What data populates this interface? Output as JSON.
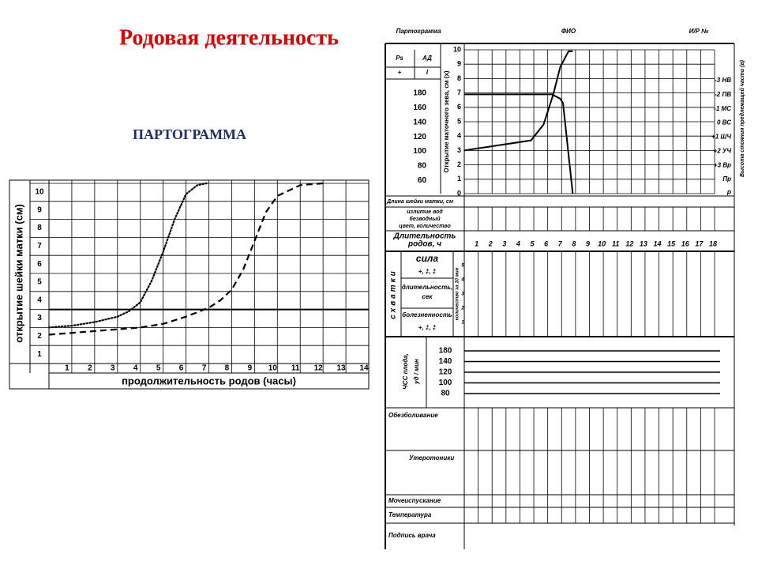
{
  "title": "Родовая деятельность",
  "subtitle": "ПАРТОГРАММА",
  "chart_data": [
    {
      "type": "line",
      "ylabel": "открытие шейки матки (см)",
      "xlabel": "продолжительность родов (часы)",
      "xlim": [
        0,
        14
      ],
      "xticks": [
        1,
        2,
        3,
        4,
        5,
        6,
        7,
        8,
        9,
        10,
        11,
        12,
        13,
        14
      ],
      "ylim": [
        0,
        10
      ],
      "yticks": [
        1,
        2,
        3,
        4,
        5,
        6,
        7,
        8,
        9,
        10
      ],
      "grid": true,
      "series": [
        {
          "color": "#000000",
          "dash": "dotted",
          "x": [
            0,
            1,
            2,
            3,
            3.5,
            4,
            4.5,
            5,
            5.5,
            6,
            6.5,
            6.9
          ],
          "values": [
            2.0,
            2.1,
            2.3,
            2.6,
            2.9,
            3.4,
            4.6,
            6.2,
            8.0,
            9.4,
            9.9,
            10
          ]
        },
        {
          "color": "#000000",
          "dash": "dashed",
          "x": [
            0,
            2,
            4,
            5,
            6,
            7,
            7.5,
            8,
            8.5,
            9,
            9.5,
            10,
            11,
            12
          ],
          "values": [
            1.6,
            1.8,
            2.0,
            2.2,
            2.6,
            3.1,
            3.5,
            4.1,
            5.2,
            6.8,
            8.4,
            9.3,
            9.9,
            10
          ]
        },
        {
          "color": "#000000",
          "dash": "solid",
          "x": [
            0,
            14
          ],
          "values": [
            3,
            3
          ]
        }
      ]
    },
    {
      "type": "line",
      "ylabel": "Открытие маточного зева, см (х)",
      "xlim": [
        0,
        18
      ],
      "xticks": [
        1,
        2,
        3,
        4,
        5,
        6,
        7,
        8,
        9,
        10,
        11,
        12,
        13,
        14,
        15,
        16,
        17,
        18
      ],
      "ylim": [
        0,
        10
      ],
      "yticks": [
        0,
        1,
        2,
        3,
        4,
        5,
        6,
        7,
        8,
        9,
        10
      ],
      "grid": true,
      "series": [
        {
          "color": "#000000",
          "dash": "solid",
          "x": [
            0,
            4.8,
            5.7,
            6.4,
            6.9,
            7.5,
            7.8
          ],
          "values": [
            3.0,
            3.7,
            4.8,
            6.9,
            8.8,
            9.9,
            9.9
          ]
        },
        {
          "color": "#000000",
          "dash": "solid",
          "x": [
            0,
            6.3,
            6.9,
            7.1,
            7.8
          ],
          "values": [
            6.9,
            6.9,
            6.6,
            6.3,
            0
          ]
        }
      ]
    }
  ],
  "form": {
    "header": [
      "Партограмма",
      "ФИО",
      "И/Р №"
    ],
    "pulse_bp": [
      "Ps",
      "АД",
      "+",
      "I"
    ],
    "bp_scale": [
      "180",
      "160",
      "140",
      "120",
      "100",
      "80",
      "60"
    ],
    "station": [
      "-3 НВ",
      "-2 ПВ",
      "-1 МС",
      "0 ВС",
      "+1 ШЧ",
      "+2 УЧ",
      "+3 Вр",
      "Пр",
      "Р"
    ],
    "station_axis": "Высота стояния предлежащей части (в)",
    "cervix_length": "Длина шейки матки, см",
    "waters": [
      "излитие вод",
      "безводный",
      "цвет, количество"
    ],
    "duration": [
      "Длительность",
      "родов, ч"
    ],
    "contractions": {
      "title": "схватки",
      "strength": "сила",
      "strength_marks": "+, ‡, ‡",
      "duration": [
        "длительность,",
        "сек"
      ],
      "pain": "болезненность",
      "pain_marks": "+, ‡, ‡",
      "count_axis": "количество за 10 мин",
      "count_scale": [
        "5",
        "4",
        "3",
        "2",
        "1"
      ]
    },
    "fhr": {
      "label": [
        "ЧСС плода,",
        "уд / мин"
      ],
      "scale": [
        "180",
        "140",
        "120",
        "100",
        "80"
      ]
    },
    "bottom": [
      "Обезболивание",
      "Утеротоники",
      "Мочеиспускание",
      "Температура",
      "Подпись врача"
    ]
  }
}
